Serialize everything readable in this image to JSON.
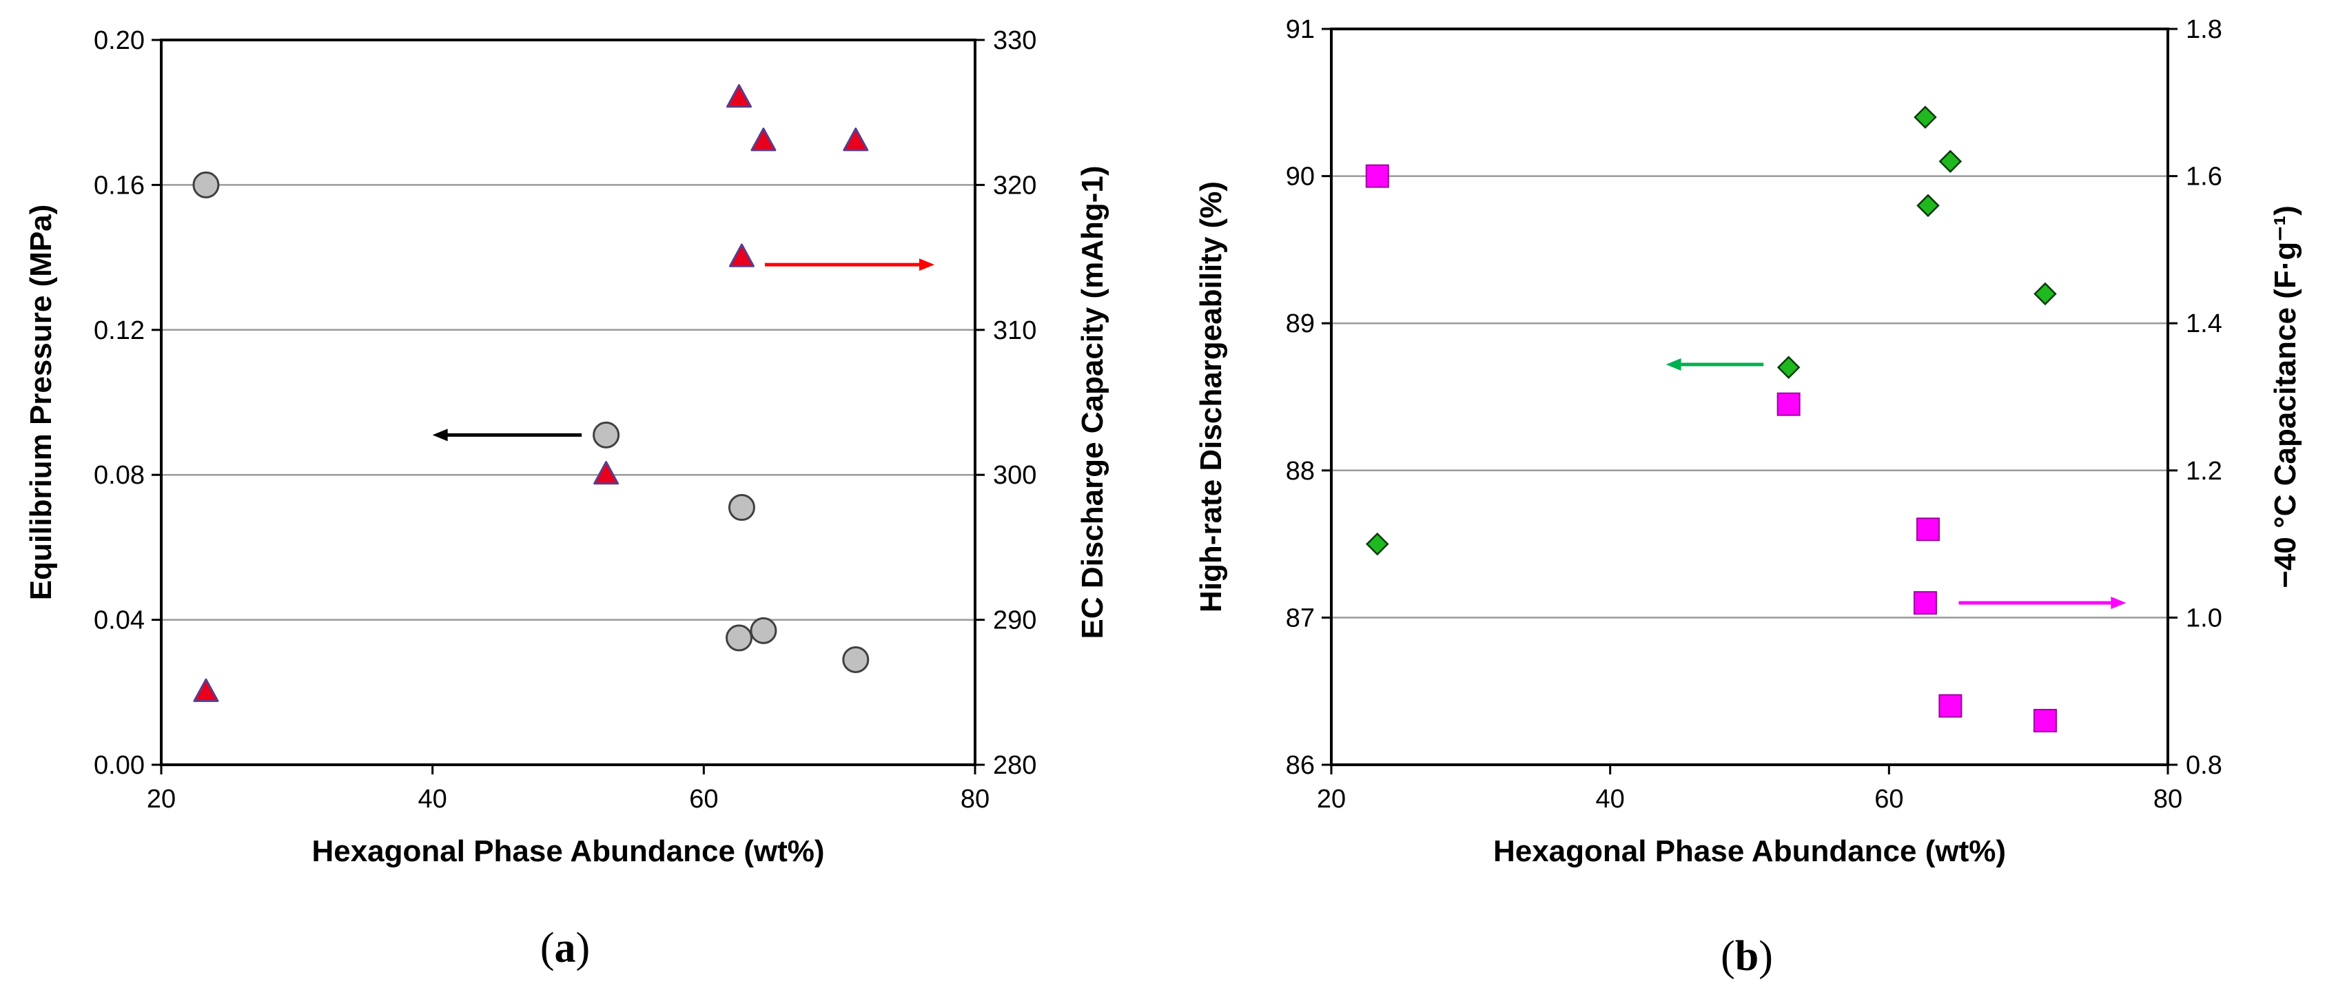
{
  "colors": {
    "grid": "#9a9a9a",
    "circle_fill": "#c0c0c0",
    "circle_stroke": "#404040",
    "triangle_fill": "#e8001c",
    "triangle_stroke": "#5a3c8c",
    "diamond_fill": "#1fb81f",
    "diamond_stroke": "#0a3a0a",
    "square_fill": "#ff00ff",
    "square_stroke": "#a000a0",
    "arrow_black": "#000000",
    "arrow_red": "#ff0000",
    "arrow_green": "#00b050",
    "arrow_magenta": "#ff00ff"
  },
  "chart_data": [
    {
      "id": "a",
      "type": "scatter",
      "panel_label": {
        "open": "(",
        "letter": "a",
        "close": ")"
      },
      "xlabel": "Hexagonal Phase Abundance (wt%)",
      "ylabel_left": "Equilibrium Pressure (MPa)",
      "ylabel_right": "EC Discharge Capacity (mAhg-1)",
      "xlim": [
        20,
        80
      ],
      "xticks": [
        20,
        40,
        60,
        80
      ],
      "ylim_left": [
        0,
        0.2
      ],
      "yticks_left": [
        0.0,
        0.04,
        0.08,
        0.12,
        0.16,
        0.2
      ],
      "ytick_labels_left": [
        "0.00",
        "0.04",
        "0.08",
        "0.12",
        "0.16",
        "0.20"
      ],
      "ylim_right": [
        280,
        330
      ],
      "yticks_right": [
        280,
        290,
        300,
        310,
        320,
        330
      ],
      "grid": "horizontal",
      "series": [
        {
          "name": "Equilibrium Pressure",
          "axis": "left",
          "marker": "circle",
          "x": [
            23.3,
            52.8,
            62.8,
            62.6,
            64.4,
            71.2
          ],
          "y": [
            0.16,
            0.091,
            0.071,
            0.035,
            0.037,
            0.029
          ]
        },
        {
          "name": "EC Discharge Capacity",
          "axis": "right",
          "marker": "triangle",
          "x": [
            23.3,
            52.8,
            62.6,
            64.4,
            71.2,
            62.8
          ],
          "y": [
            285,
            300,
            326,
            323,
            323,
            315
          ]
        }
      ],
      "arrows": [
        {
          "axis": "left",
          "direction": "left",
          "x_from": 51,
          "x_to": 40,
          "y": 0.091,
          "color_key": "arrow_black"
        },
        {
          "axis": "right",
          "direction": "right",
          "x_from": 64.5,
          "x_to": 77,
          "y": 314.5,
          "color_key": "arrow_red"
        }
      ]
    },
    {
      "id": "b",
      "type": "scatter",
      "panel_label": {
        "open": "(",
        "letter": "b",
        "close": ")"
      },
      "xlabel": "Hexagonal Phase Abundance (wt%)",
      "ylabel_left": "High-rate Dischargeability (%)",
      "ylabel_right": "−40 °C Capacitance (F·g⁻¹)",
      "xlim": [
        20,
        80
      ],
      "xticks": [
        20,
        40,
        60,
        80
      ],
      "ylim_left": [
        86,
        91
      ],
      "yticks_left": [
        86,
        87,
        88,
        89,
        90,
        91
      ],
      "ylim_right": [
        0.8,
        1.8
      ],
      "yticks_right": [
        0.8,
        1.0,
        1.2,
        1.4,
        1.6,
        1.8
      ],
      "ytick_labels_right": [
        "0.8",
        "1.0",
        "1.2",
        "1.4",
        "1.6",
        "1.8"
      ],
      "grid": "horizontal",
      "series": [
        {
          "name": "High-rate Dischargeability",
          "axis": "left",
          "marker": "diamond",
          "x": [
            23.3,
            52.8,
            62.6,
            62.8,
            64.4,
            71.2
          ],
          "y": [
            87.5,
            88.7,
            90.4,
            89.8,
            90.1,
            89.2
          ]
        },
        {
          "name": "-40 °C Capacitance",
          "axis": "right",
          "marker": "square",
          "x": [
            23.3,
            52.8,
            62.8,
            62.6,
            64.4,
            71.2
          ],
          "y": [
            1.6,
            1.29,
            1.12,
            1.02,
            0.88,
            0.86
          ]
        }
      ],
      "arrows": [
        {
          "axis": "left",
          "direction": "left",
          "x_from": 51,
          "x_to": 44,
          "y": 88.72,
          "color_key": "arrow_green"
        },
        {
          "axis": "right",
          "direction": "right",
          "x_from": 65,
          "x_to": 77,
          "y": 1.02,
          "color_key": "arrow_magenta"
        }
      ]
    }
  ]
}
